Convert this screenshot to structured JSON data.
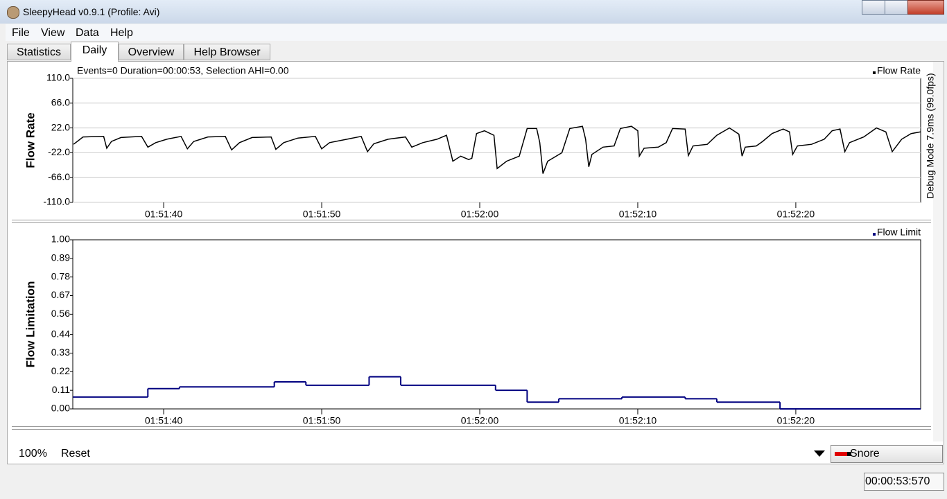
{
  "window": {
    "title": "SleepyHead v0.9.1  (Profile: Avi)"
  },
  "menu": [
    "File",
    "View",
    "Data",
    "Help"
  ],
  "tabs": [
    "Statistics",
    "Daily",
    "Overview",
    "Help Browser"
  ],
  "info": "Events=0 Duration=00:00:53, Selection AHI=0.00",
  "debug": "Debug Mode 7.9ms (99.0fps)",
  "chart_data": [
    {
      "type": "line",
      "y_label": "Flow Rate",
      "grid": true,
      "xlim": [
        6694.25,
        6747.9
      ],
      "xticks": [
        {
          "value": 6700,
          "label": "01:51:40"
        },
        {
          "value": 6710,
          "label": "01:51:50"
        },
        {
          "value": 6720,
          "label": "01:52:00"
        },
        {
          "value": 6730,
          "label": "01:52:10"
        },
        {
          "value": 6740,
          "label": "01:52:20"
        }
      ],
      "ylim": [
        -110,
        110
      ],
      "yticks": [
        {
          "value": 110,
          "label": "110.0"
        },
        {
          "value": 66,
          "label": "66.0"
        },
        {
          "value": 22,
          "label": "22.0"
        },
        {
          "value": -22,
          "label": "-22.0"
        },
        {
          "value": -66,
          "label": "-66.0"
        },
        {
          "value": -110,
          "label": "-110.0"
        }
      ],
      "x": [
        6694.3,
        6694.9,
        6696.2,
        6696.4,
        6696.7,
        6697.3,
        6698.6,
        6699.0,
        6699.5,
        6700.2,
        6701.1,
        6701.5,
        6701.9,
        6702.8,
        6703.9,
        6704.3,
        6704.8,
        6705.6,
        6706.8,
        6707.1,
        6707.6,
        6708.5,
        6709.6,
        6710.0,
        6710.5,
        6711.6,
        6712.5,
        6712.9,
        6713.3,
        6714.2,
        6715.3,
        6715.7,
        6716.4,
        6717.3,
        6717.9,
        6718.3,
        6718.8,
        6719.3,
        6719.5,
        6719.8,
        6720.3,
        6720.9,
        6721.1,
        6721.7,
        6722.5,
        6723.0,
        6723.6,
        6723.8,
        6724.0,
        6724.3,
        6725.2,
        6725.7,
        6726.5,
        6726.7,
        6726.9,
        6727.1,
        6727.8,
        6728.5,
        6728.9,
        6729.6,
        6730.0,
        6730.1,
        6730.4,
        6731.3,
        6731.8,
        6732.2,
        6733.0,
        6733.2,
        6733.5,
        6734.4,
        6735.0,
        6735.8,
        6736.4,
        6736.6,
        6736.8,
        6737.5,
        6737.9,
        6738.5,
        6739.2,
        6739.6,
        6739.8,
        6740.1,
        6741.0,
        6741.8,
        6742.3,
        6742.8,
        6743.1,
        6743.4,
        6744.3,
        6745.1,
        6745.7,
        6746.1,
        6746.7,
        6747.3,
        6747.9
      ],
      "series": [
        {
          "name": "Flow Rate",
          "color": "#000000",
          "values": [
            -7,
            6,
            7,
            -14,
            -2,
            5,
            7,
            -12,
            -4,
            2,
            7,
            -15,
            -2,
            6,
            7,
            -17,
            -4,
            5,
            6,
            -16,
            -4,
            4,
            7,
            -15,
            -4,
            2,
            7,
            -20,
            -6,
            2,
            6,
            -12,
            -4,
            2,
            9,
            -37,
            -28,
            -34,
            -32,
            12,
            17,
            9,
            -50,
            -37,
            -28,
            21,
            21,
            -4,
            -59,
            -37,
            -22,
            21,
            25,
            2,
            -47,
            -25,
            -12,
            -10,
            21,
            25,
            17,
            -28,
            -14,
            -12,
            -4,
            21,
            20,
            -27,
            -10,
            -7,
            9,
            22,
            11,
            -28,
            -12,
            -10,
            -2,
            12,
            20,
            15,
            -25,
            -10,
            -7,
            2,
            17,
            20,
            -20,
            -4,
            6,
            22,
            15,
            -20,
            2,
            12,
            15
          ]
        }
      ]
    },
    {
      "type": "step",
      "y_label": "Flow Limitation",
      "grid": false,
      "xlim": [
        6694.25,
        6747.9
      ],
      "xticks": [
        {
          "value": 6700,
          "label": "01:51:40"
        },
        {
          "value": 6710,
          "label": "01:51:50"
        },
        {
          "value": 6720,
          "label": "01:52:00"
        },
        {
          "value": 6730,
          "label": "01:52:10"
        },
        {
          "value": 6740,
          "label": "01:52:20"
        }
      ],
      "ylim": [
        0,
        1
      ],
      "yticks": [
        {
          "value": 1,
          "label": "1.00"
        },
        0.89,
        0.78,
        0.67,
        0.56,
        0.44,
        0.33,
        0.22,
        0.11,
        {
          "value": 0,
          "label": "0.00"
        }
      ],
      "x": [
        6694.25,
        6699,
        6701,
        6707,
        6709,
        6713,
        6715,
        6721,
        6723,
        6725,
        6729,
        6733,
        6735,
        6739
      ],
      "series": [
        {
          "name": "Flow Limit",
          "color": "#000080",
          "values": [
            0.07,
            0.12,
            0.13,
            0.16,
            0.14,
            0.19,
            0.14,
            0.11,
            0.04,
            0.06,
            0.07,
            0.06,
            0.04,
            0
          ]
        }
      ]
    }
  ],
  "footer": {
    "zoom": "100%",
    "reset": "Reset",
    "event_type": "Snore",
    "time": "00:00:53:570"
  }
}
